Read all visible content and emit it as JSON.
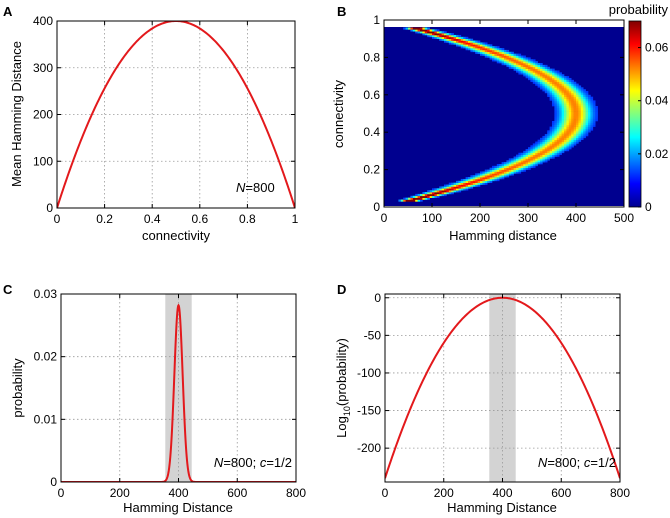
{
  "chart_data": [
    {
      "panel": "A",
      "type": "line",
      "xlabel": "connectivity",
      "ylabel": "Mean Hamming Distance",
      "xlim": [
        0,
        1
      ],
      "ylim": [
        0,
        400
      ],
      "xticks": [
        "0",
        "0.2",
        "0.4",
        "0.6",
        "0.8",
        "1"
      ],
      "yticks": [
        "0",
        "100",
        "200",
        "300",
        "400"
      ],
      "annotation": {
        "var": "N",
        "rest": "=800"
      },
      "grid": true,
      "series": [
        {
          "name": "mean",
          "color": "#e3191c",
          "formula": "1600*c*(1-c)",
          "x": [
            0,
            0.1,
            0.2,
            0.3,
            0.4,
            0.5,
            0.6,
            0.7,
            0.8,
            0.9,
            1
          ],
          "y": [
            0,
            144,
            256,
            336,
            384,
            400,
            384,
            336,
            256,
            144,
            0
          ]
        }
      ]
    },
    {
      "panel": "B",
      "type": "heatmap",
      "xlabel": "Hamming distance",
      "ylabel": "connectivity",
      "xlim": [
        0,
        500
      ],
      "ylim": [
        0,
        1
      ],
      "data_ylim": [
        0.03,
        0.96
      ],
      "xticks": [
        "0",
        "100",
        "200",
        "300",
        "400",
        "500"
      ],
      "yticks": [
        "0",
        "0.2",
        "0.4",
        "0.6",
        "0.8",
        "1"
      ],
      "colorbar": {
        "label": "probability",
        "range": [
          0,
          0.07
        ],
        "ticks": [
          "0",
          "0.02",
          "0.04",
          "0.06"
        ]
      },
      "ridge": "mean Hamming distance = 1600*c*(1-c), spread = sqrt(2*800*p*(1-p)), p = 2c(1-c)"
    },
    {
      "panel": "C",
      "type": "line",
      "xlabel": "Hamming Distance",
      "ylabel": "probability",
      "xlim": [
        0,
        800
      ],
      "ylim": [
        0,
        0.03
      ],
      "xticks": [
        "0",
        "200",
        "400",
        "600",
        "800"
      ],
      "yticks": [
        "0",
        "0.01",
        "0.02",
        "0.03"
      ],
      "shaded_band": [
        355,
        445
      ],
      "annotation": {
        "var": "N",
        "mid": "=800; ",
        "var2": "c",
        "rest": "=1/2"
      },
      "grid": true,
      "series": [
        {
          "name": "probability",
          "color": "#e3191c",
          "peak_x": 400,
          "peak_y": 0.0282,
          "spread": 14.14
        }
      ]
    },
    {
      "panel": "D",
      "type": "line",
      "xlabel": "Hamming Distance",
      "ylabel": "Log",
      "ylabel_sub": "10",
      "ylabel_rest": "(probability)",
      "xlim": [
        0,
        800
      ],
      "ylim": [
        -245,
        5
      ],
      "xticks": [
        "0",
        "200",
        "400",
        "600",
        "800"
      ],
      "yticks": [
        "0",
        "-50",
        "-100",
        "-150",
        "-200"
      ],
      "ytick_values": [
        0,
        -50,
        -100,
        -150,
        -200
      ],
      "shaded_band": [
        355,
        445
      ],
      "annotation": {
        "var": "N",
        "mid": "=800; ",
        "var2": "c",
        "rest": "=1/2"
      },
      "grid": true,
      "series": [
        {
          "name": "log10 probability",
          "color": "#e3191c",
          "x_center": 400,
          "y_at_0": -240
        }
      ]
    }
  ]
}
